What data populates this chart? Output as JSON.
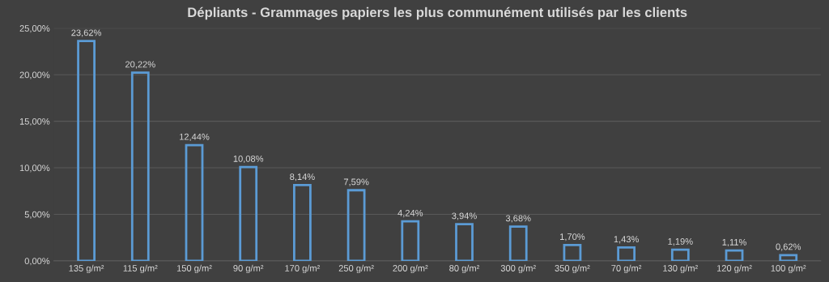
{
  "chart_data": {
    "type": "bar",
    "title": "Dépliants - Grammages papiers les plus communément utilisés par les clients",
    "categories": [
      "135 g/m²",
      "115 g/m²",
      "150 g/m²",
      "90 g/m²",
      "170 g/m²",
      "250 g/m²",
      "200 g/m²",
      "80 g/m²",
      "300 g/m²",
      "350 g/m²",
      "70 g/m²",
      "130 g/m²",
      "120 g/m²",
      "100 g/m²"
    ],
    "values": [
      23.62,
      20.22,
      12.44,
      10.08,
      8.14,
      7.59,
      4.24,
      3.94,
      3.68,
      1.7,
      1.43,
      1.19,
      1.11,
      0.62
    ],
    "value_labels": [
      "23,62%",
      "20,22%",
      "12,44%",
      "10,08%",
      "8,14%",
      "7,59%",
      "4,24%",
      "3,94%",
      "3,68%",
      "1,70%",
      "1,43%",
      "1,19%",
      "1,11%",
      "0,62%"
    ],
    "color": "#5b9bd5",
    "ylim": [
      0,
      25
    ],
    "yticks": [
      {
        "value": 0,
        "label": "0,00%"
      },
      {
        "value": 5,
        "label": "5,00%"
      },
      {
        "value": 10,
        "label": "10,00%"
      },
      {
        "value": 15,
        "label": "15,00%"
      },
      {
        "value": 20,
        "label": "20,00%"
      },
      {
        "value": 25,
        "label": "25,00%"
      }
    ],
    "grid": "y",
    "legend": false
  }
}
